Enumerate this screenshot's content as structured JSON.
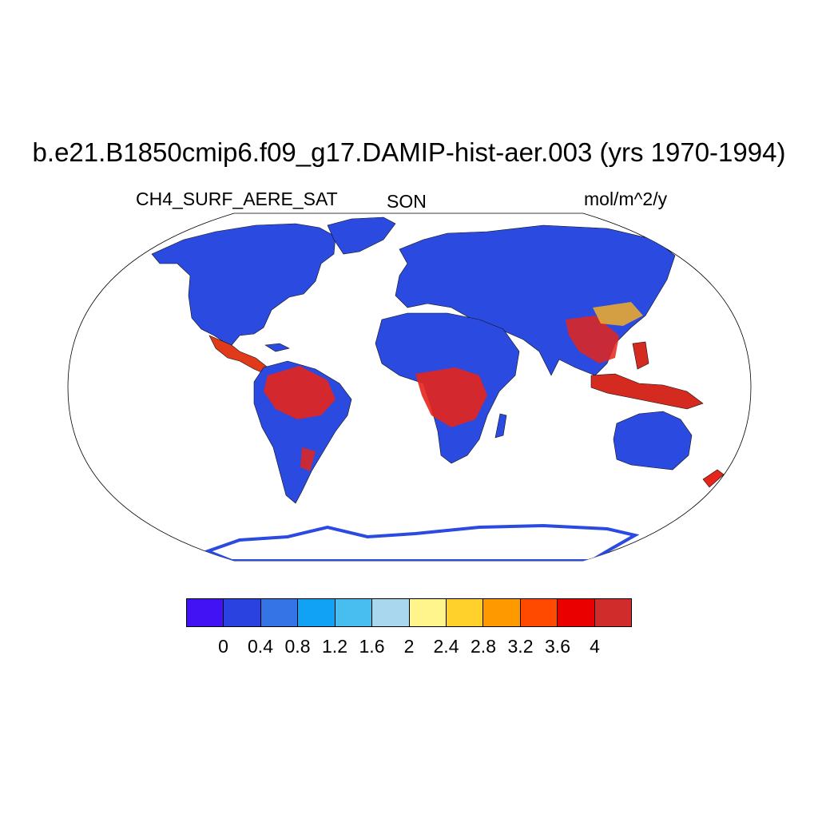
{
  "title": "b.e21.B1850cmip6.f09_g17.DAMIP-hist-aer.003 (yrs 1970-1994)",
  "left_label": "CH4_SURF_AERE_SAT",
  "center_label": "SON",
  "right_label": "mol/m^2/y",
  "map": {
    "projection": "Robinson",
    "background": "#ffffff",
    "base_color": "#2a4ae0"
  },
  "colorbar": {
    "colors": [
      "#4212f5",
      "#2a43e0",
      "#3574e6",
      "#12a2f5",
      "#48bdf0",
      "#a9d8ee",
      "#fff58c",
      "#ffd12a",
      "#ff9900",
      "#ff4a00",
      "#eb0000",
      "#d12c2c"
    ],
    "tick_labels": [
      "0",
      "0.4",
      "0.8",
      "1.2",
      "1.6",
      "2",
      "2.4",
      "2.8",
      "3.2",
      "3.6",
      "4"
    ]
  }
}
